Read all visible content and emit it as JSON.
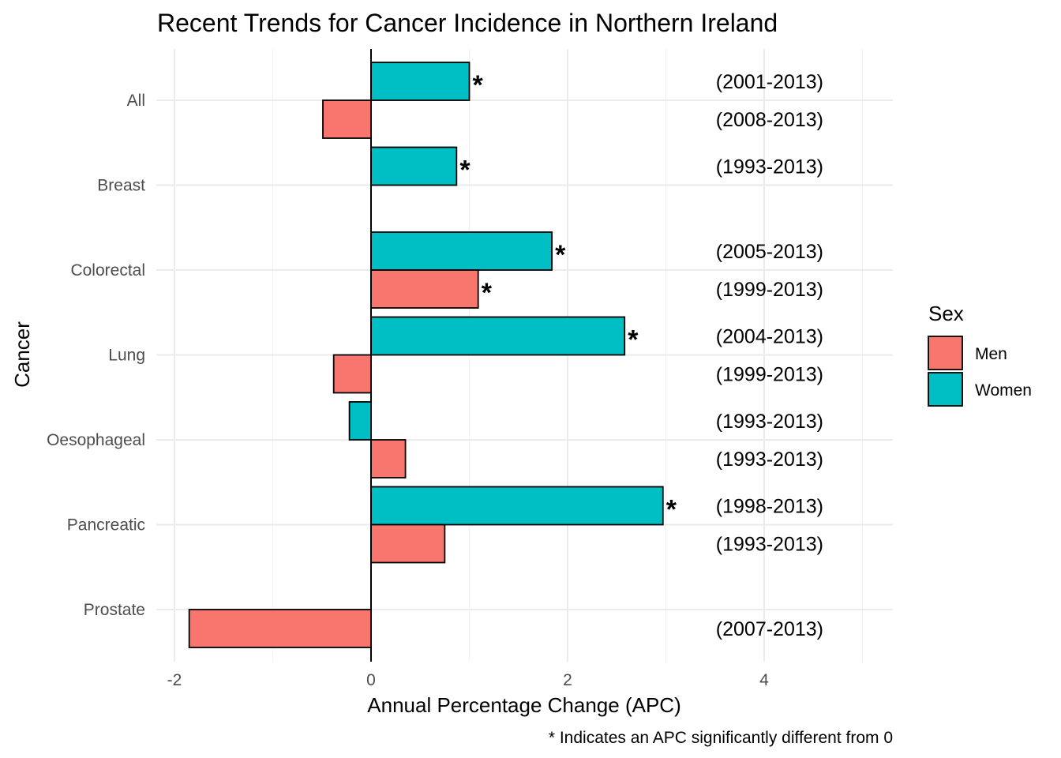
{
  "chart_data": {
    "type": "bar",
    "orientation": "horizontal",
    "title": "Recent Trends for Cancer Incidence in Northern Ireland",
    "xlabel": "Annual Percentage Change (APC)",
    "ylabel": "Cancer",
    "caption": "* Indicates an APC significantly different from 0",
    "xlim": [
      -2,
      5
    ],
    "x_ticks": [
      "-2",
      "0",
      "2",
      "4"
    ],
    "grid": true,
    "categories": [
      "All",
      "Breast",
      "Colorectal",
      "Lung",
      "Oesophageal",
      "Pancreatic",
      "Prostate"
    ],
    "legend": {
      "title": "Sex",
      "placement": "right",
      "entries": [
        {
          "label": "Men",
          "color": "#F8766D"
        },
        {
          "label": "Women",
          "color": "#00BFC4"
        }
      ]
    },
    "series": [
      {
        "name": "Women",
        "color": "#00BFC4",
        "values": [
          1.0,
          0.87,
          1.84,
          2.58,
          -0.22,
          2.97,
          null
        ],
        "significant": [
          true,
          true,
          true,
          true,
          false,
          true,
          false
        ],
        "periods": [
          "(2001-2013)",
          "(1993-2013)",
          "(2005-2013)",
          "(2004-2013)",
          "(1993-2013)",
          "(1998-2013)",
          ""
        ]
      },
      {
        "name": "Men",
        "color": "#F8766D",
        "values": [
          -0.49,
          null,
          1.09,
          -0.38,
          0.35,
          0.75,
          -1.85
        ],
        "significant": [
          false,
          false,
          true,
          false,
          false,
          false,
          false
        ],
        "periods": [
          "(2008-2013)",
          "",
          "(1999-2013)",
          "(1999-2013)",
          "(1993-2013)",
          "(1993-2013)",
          "(2007-2013)"
        ]
      }
    ],
    "significance_marker": "*"
  }
}
